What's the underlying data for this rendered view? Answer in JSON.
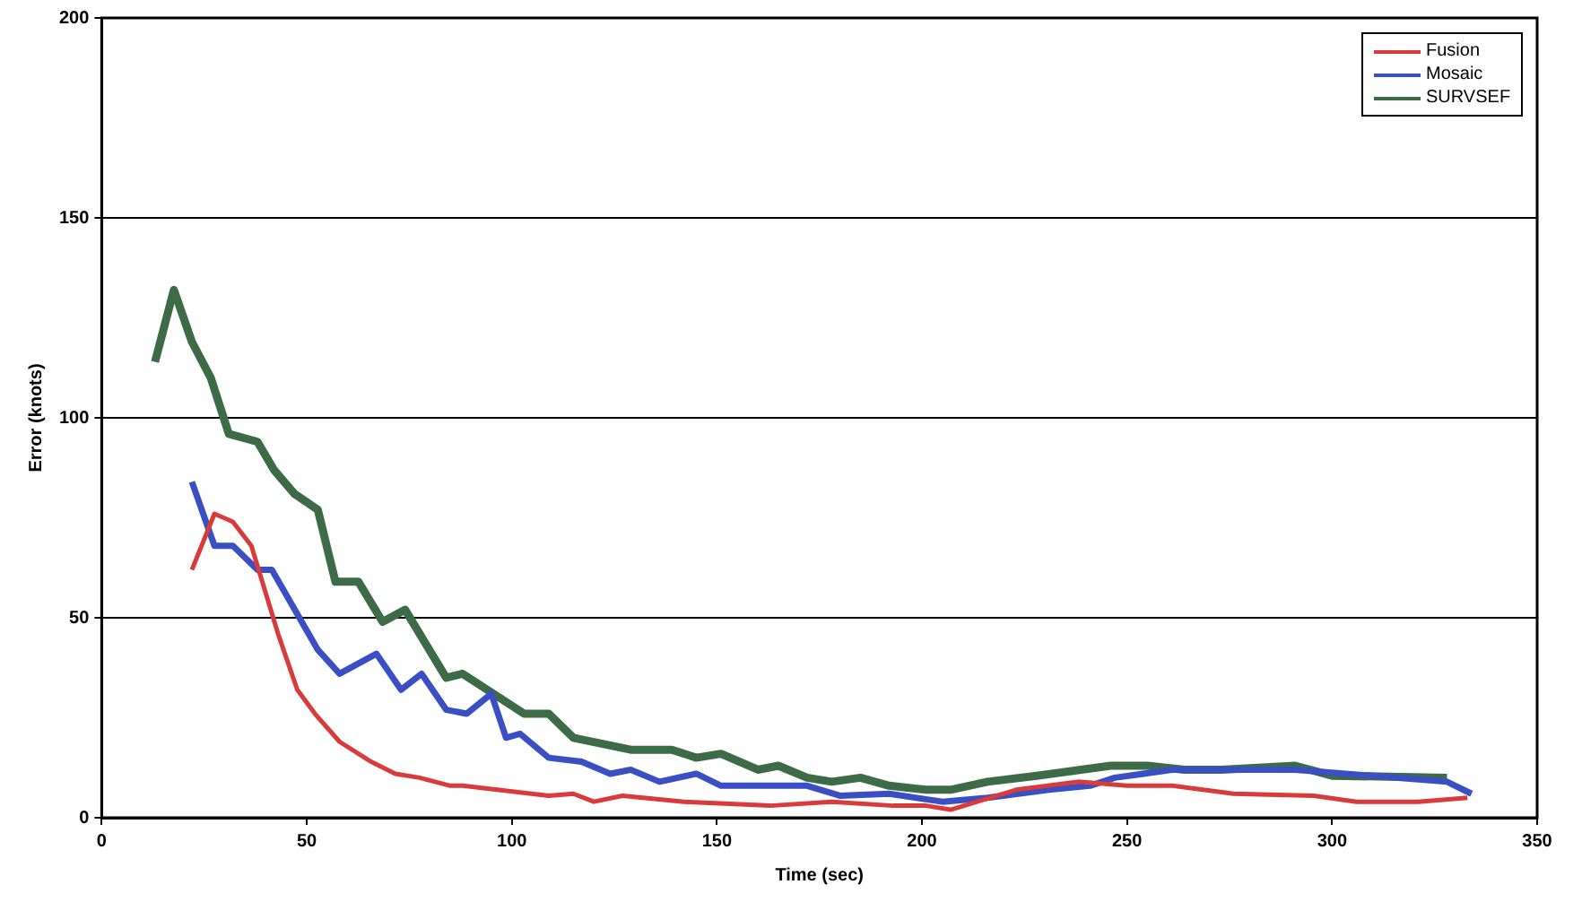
{
  "chart_data": {
    "type": "line",
    "xlabel": "Time (sec)",
    "ylabel": "Error (knots)",
    "xlim": [
      0,
      350
    ],
    "xticks": [
      0,
      50,
      100,
      150,
      200,
      250,
      300,
      350
    ],
    "ylim": [
      0,
      200
    ],
    "yticks": [
      0,
      50,
      100,
      150,
      200
    ],
    "grid": "y",
    "legend": "top right",
    "marker": "none",
    "line_style": "solid",
    "series": [
      {
        "name": "Fusion",
        "color": "#d93a3a",
        "x": [
          22,
          27.5,
          32,
          36.5,
          43,
          47.7,
          52,
          58,
          65.7,
          71.6,
          77.5,
          85,
          88,
          109,
          115,
          120,
          127,
          142,
          163,
          178,
          193,
          201,
          207,
          223,
          238,
          250,
          261,
          276,
          295.5,
          306,
          321,
          333
        ],
        "values": [
          62,
          76,
          74,
          68,
          46,
          32,
          26,
          19,
          14,
          11,
          10,
          8,
          8,
          5.5,
          6,
          4,
          5.5,
          4,
          3,
          4,
          3,
          3,
          2,
          7,
          9,
          8,
          8,
          6,
          5.5,
          4,
          4,
          5
        ]
      },
      {
        "name": "Mosaic",
        "color": "#3b4fc4",
        "x": [
          22,
          27.5,
          32,
          38,
          41.5,
          52.7,
          58,
          67,
          73,
          78,
          84,
          89,
          95,
          98.6,
          102,
          109,
          117,
          124,
          129,
          136,
          145,
          151,
          163,
          172,
          180,
          192,
          205,
          216,
          231,
          241,
          247,
          261,
          273,
          291,
          328,
          334
        ],
        "values": [
          84,
          68,
          68,
          62,
          62,
          42,
          36,
          41,
          32,
          36,
          27,
          26,
          31,
          20,
          21,
          15,
          14,
          11,
          12,
          9,
          11,
          8,
          8,
          8,
          5.5,
          6,
          4,
          5,
          7,
          8,
          10,
          12,
          12,
          12,
          9,
          6
        ]
      },
      {
        "name": "SURVSEF",
        "color": "#3d6b47",
        "x": [
          13,
          17.6,
          22,
          26.6,
          31,
          38,
          42,
          47,
          52.7,
          57,
          62.6,
          68.5,
          74,
          84,
          88,
          94,
          103,
          109,
          115,
          129,
          139,
          145,
          151,
          160,
          165,
          172,
          178,
          185,
          192,
          201,
          207,
          216,
          228,
          246,
          255,
          264,
          273,
          291,
          300,
          328
        ],
        "values": [
          114,
          132,
          119,
          110,
          96,
          94,
          87,
          81,
          77,
          59,
          59,
          49,
          52,
          35,
          36,
          32,
          26,
          26,
          20,
          17,
          17,
          15,
          16,
          12,
          13,
          10,
          9,
          10,
          8,
          7,
          7,
          9,
          10.5,
          13,
          13,
          12,
          12,
          13,
          10.5,
          10
        ]
      }
    ]
  }
}
